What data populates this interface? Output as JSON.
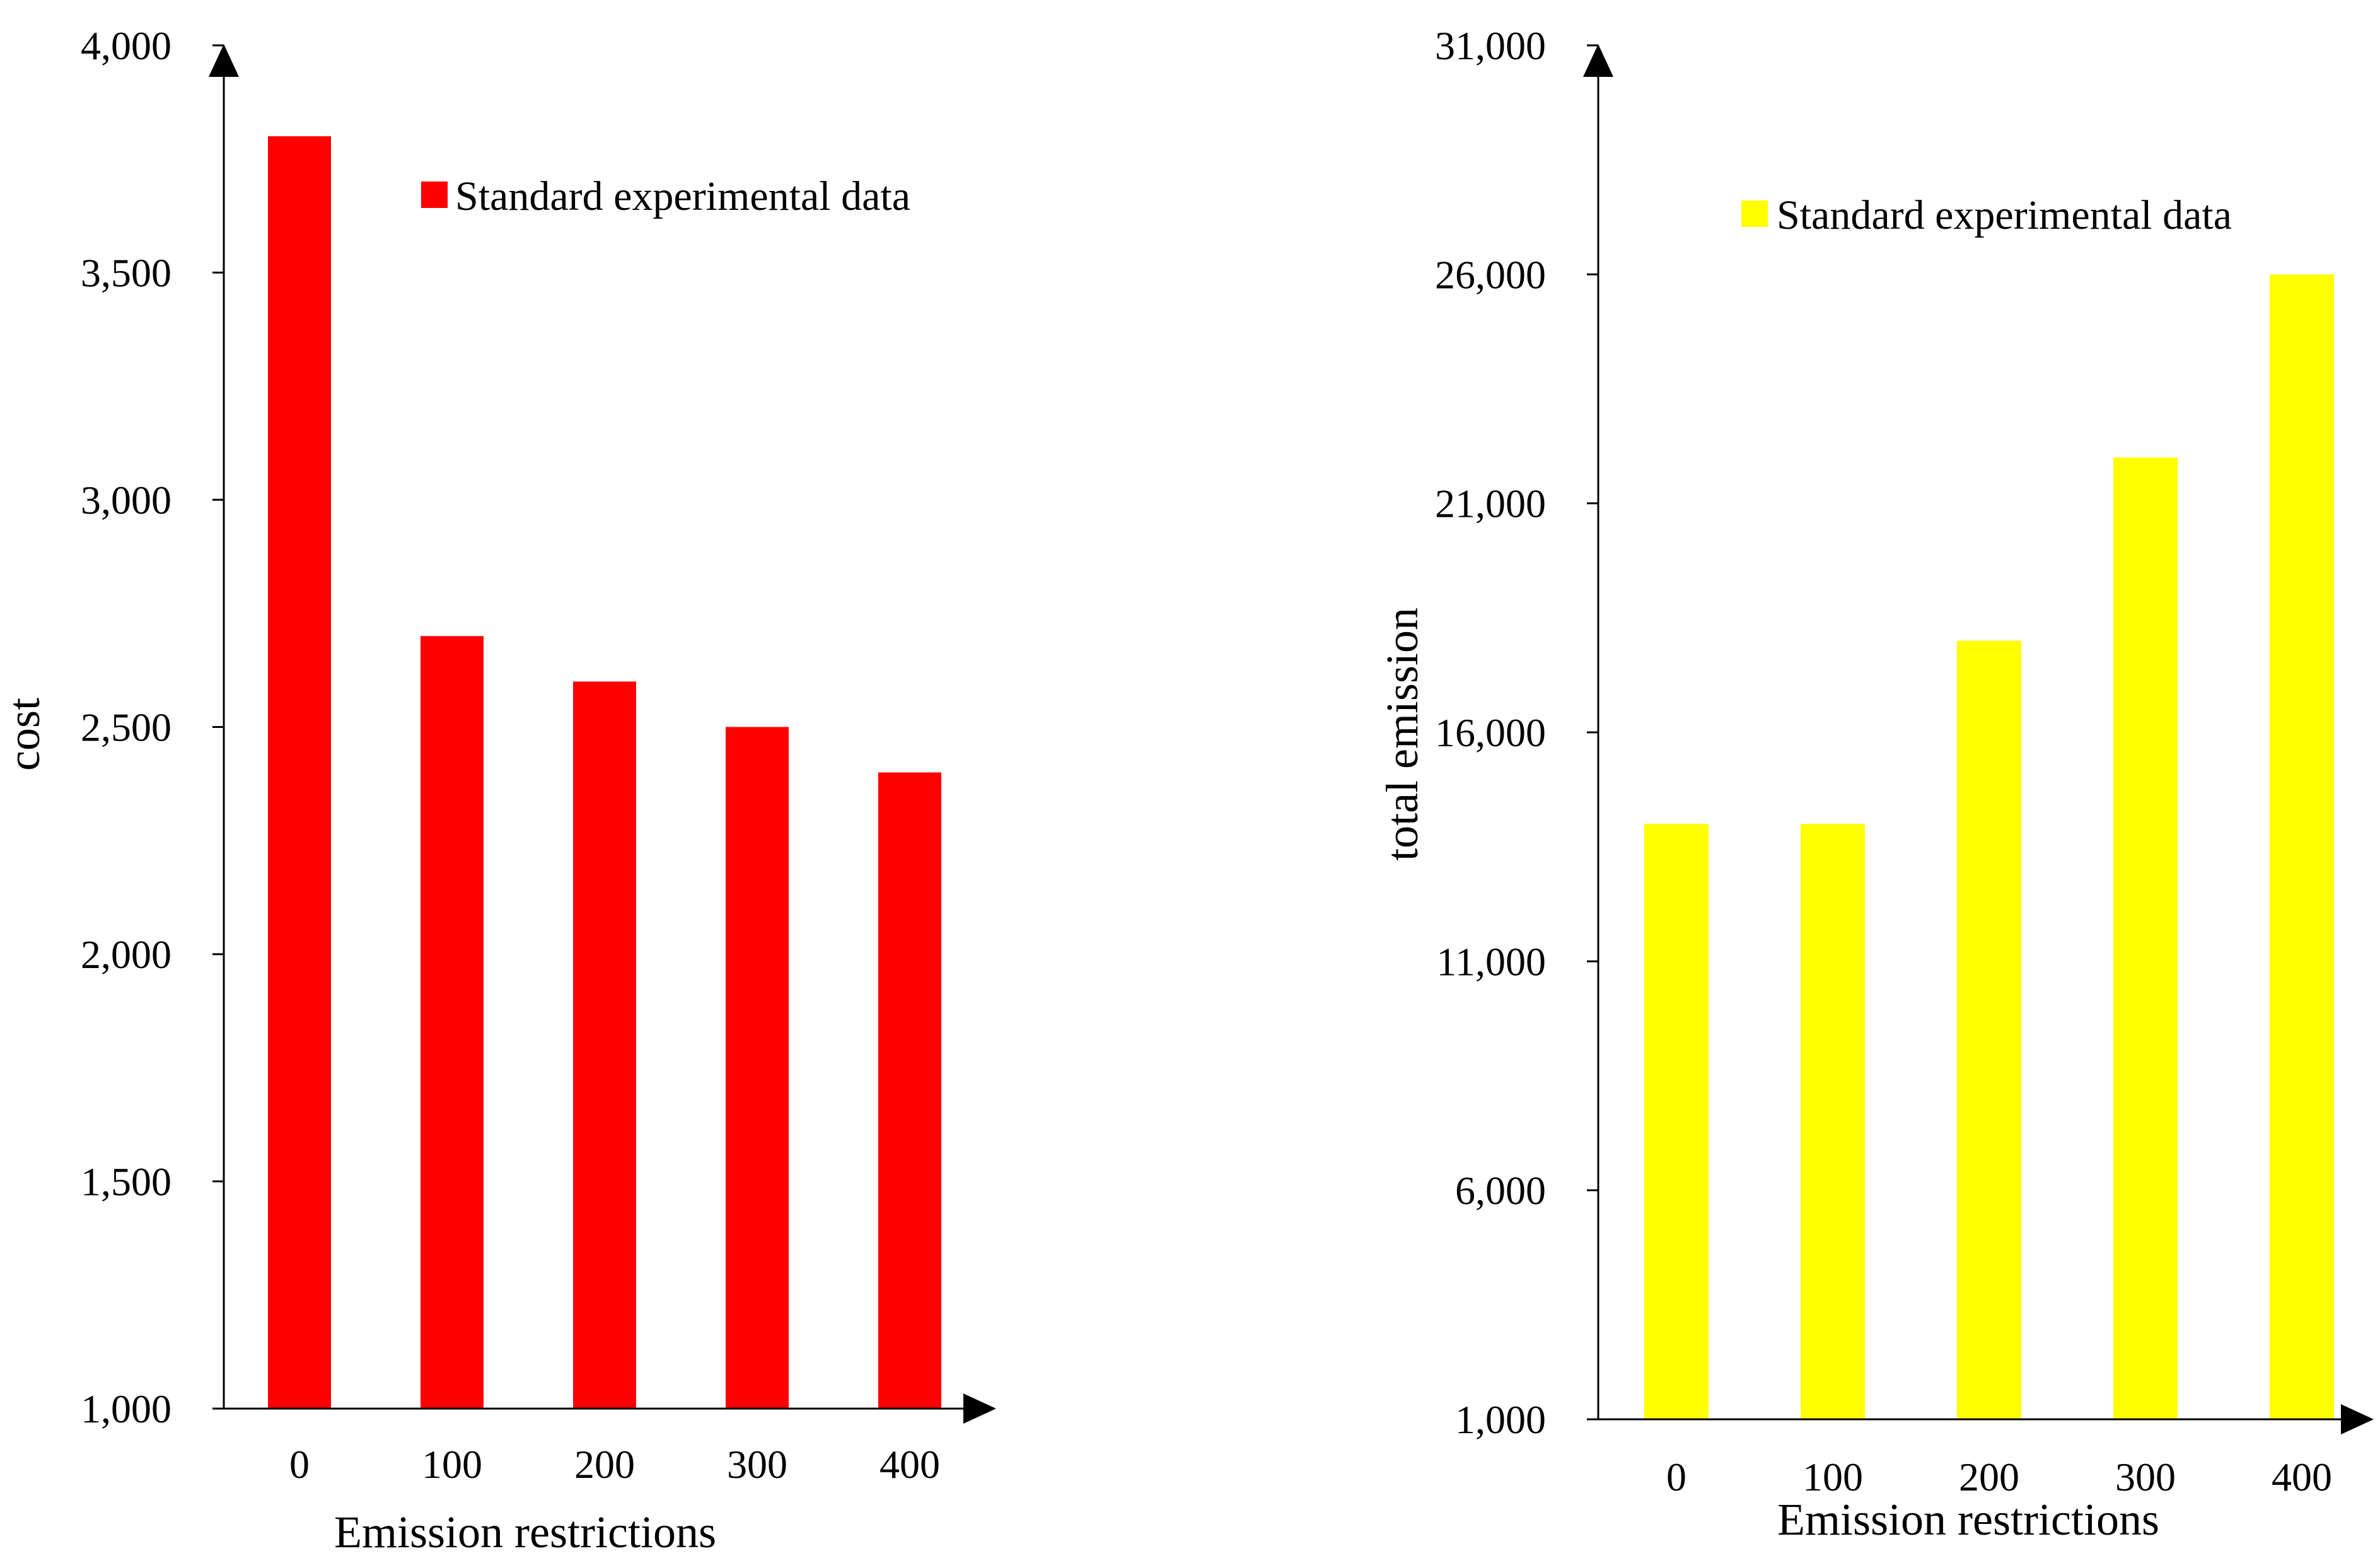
{
  "chart_data": [
    {
      "type": "bar",
      "title": "",
      "xlabel": "Emission restrictions",
      "ylabel": "cost",
      "categories": [
        "0",
        "100",
        "200",
        "300",
        "400"
      ],
      "series": [
        {
          "name": "Standard experimental data",
          "values": [
            3800,
            2700,
            2600,
            2500,
            2400
          ]
        }
      ],
      "ylim": [
        1000,
        4000
      ],
      "yticks": [
        1000,
        1500,
        2000,
        2500,
        3000,
        3500,
        4000
      ],
      "ytick_labels": [
        "1,000",
        "1,500",
        "2,000",
        "2,500",
        "3,000",
        "3,500",
        "4,000"
      ],
      "color": "#ff0000",
      "grid": false,
      "legend": "top-right"
    },
    {
      "type": "bar",
      "title": "",
      "xlabel": "Emission restrictions",
      "ylabel": "total emission",
      "categories": [
        "0",
        "100",
        "200",
        "300",
        "400"
      ],
      "series": [
        {
          "name": "Standard experimental data",
          "values": [
            14000,
            14000,
            18000,
            22000,
            26000
          ]
        }
      ],
      "ylim": [
        1000,
        31000
      ],
      "yticks": [
        1000,
        6000,
        11000,
        16000,
        21000,
        26000,
        31000
      ],
      "ytick_labels": [
        "1,000",
        "6,000",
        "11,000",
        "16,000",
        "21,000",
        "26,000",
        "31,000"
      ],
      "color": "#ffff00",
      "grid": false,
      "legend": "top-right"
    }
  ]
}
